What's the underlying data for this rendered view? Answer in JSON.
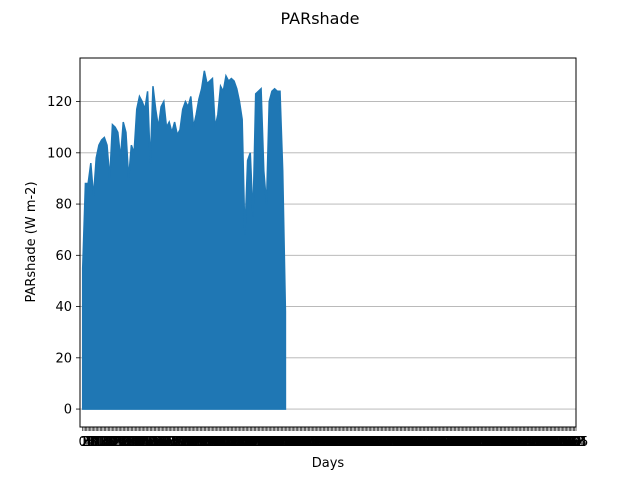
{
  "chart_data": {
    "type": "area",
    "title": "PARshade",
    "xlabel": "Days",
    "ylabel": "PARshade (W m-2)",
    "ylim": [
      -7,
      137
    ],
    "yticks": [
      0,
      20,
      40,
      60,
      80,
      100,
      120
    ],
    "xlim": [
      -2,
      365
    ],
    "xtick_count": 366,
    "grid": "horizontal",
    "color": "#1f77b4",
    "x": [
      0,
      2,
      4,
      6,
      8,
      10,
      12,
      14,
      16,
      18,
      20,
      22,
      24,
      26,
      28,
      30,
      32,
      34,
      36,
      38,
      40,
      42,
      44,
      46,
      48,
      50,
      52,
      54,
      56,
      58,
      60,
      62,
      64,
      66,
      68,
      70,
      72,
      74,
      76,
      78,
      80,
      82,
      84,
      86,
      88,
      90,
      92,
      94,
      96,
      98,
      100,
      102,
      104,
      106,
      108,
      110,
      112,
      114,
      116,
      118,
      120,
      122,
      124,
      126,
      128,
      130,
      132,
      134,
      136,
      138,
      140,
      142,
      144,
      146,
      148,
      150
    ],
    "values": [
      55,
      88,
      88,
      96,
      83,
      98,
      103,
      105,
      106,
      103,
      90,
      111,
      110,
      108,
      98,
      112,
      108,
      90,
      103,
      100,
      117,
      122,
      120,
      117,
      124,
      96,
      126,
      117,
      110,
      118,
      120,
      110,
      112,
      108,
      112,
      107,
      109,
      117,
      120,
      118,
      122,
      110,
      115,
      121,
      125,
      132,
      127,
      128,
      129,
      110,
      115,
      126,
      124,
      130,
      128,
      129,
      128,
      125,
      120,
      113,
      68,
      97,
      100,
      75,
      123,
      124,
      125,
      93,
      80,
      120,
      124,
      125,
      124,
      124,
      93,
      38
    ],
    "baseline": 0
  }
}
